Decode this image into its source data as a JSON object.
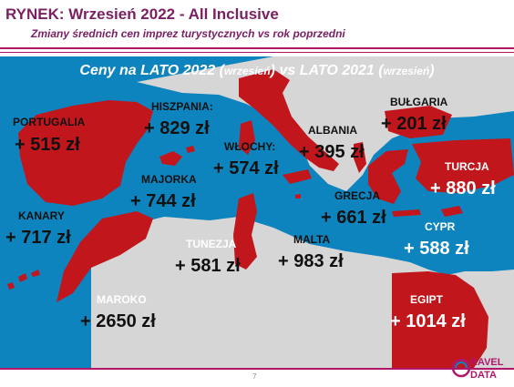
{
  "header": {
    "title": "RYNEK: Wrzesień 2022 - All Inclusive",
    "subtitle": "Zmiany średnich cen imprez turystycznych vs rok poprzedni"
  },
  "map": {
    "heading_main_1": "Ceny na LATO 2022 (",
    "heading_small_1": "wrzesień",
    "heading_main_2": ") vs  LATO 2021 (",
    "heading_small_2": "wrzesień",
    "heading_main_3": ")",
    "colors": {
      "sea": "#0e84be",
      "land": "#d6d6d6",
      "highlight": "#c0161c",
      "accent": "#b0176b"
    }
  },
  "countries": {
    "portugalia": {
      "name": "PORTUGALIA",
      "value": "+ 515 zł"
    },
    "hiszpania": {
      "name": "HISZPANIA:",
      "value": "+ 829 zł"
    },
    "majorka": {
      "name": "MAJORKA",
      "value": "+ 744 zł"
    },
    "kanary": {
      "name": "KANARY",
      "value": "+ 717 zł"
    },
    "maroko": {
      "name": "MAROKO",
      "value": "+ 2650 zł"
    },
    "wlochy": {
      "name": "WŁOCHY:",
      "value": "+ 574 zł"
    },
    "tunezja": {
      "name": "TUNEZJA",
      "value": "+ 581 zł"
    },
    "malta": {
      "name": "MALTA",
      "value": "+ 983 zł"
    },
    "albania": {
      "name": "ALBANIA",
      "value": "+ 395 zł"
    },
    "grecja": {
      "name": "GRECJA",
      "value": "+ 661 zł"
    },
    "bulgaria": {
      "name": "BUŁGARIA",
      "value": "+ 201 zł"
    },
    "turcja": {
      "name": "TURCJA",
      "value": "+ 880 zł"
    },
    "cypr": {
      "name": "CYPR",
      "value": "+ 588 zł"
    },
    "egipt": {
      "name": "EGIPT",
      "value": "+ 1014 zł"
    }
  },
  "footer": {
    "page": "7",
    "logo_line1": "RAVEL",
    "logo_line2": "DATA"
  }
}
